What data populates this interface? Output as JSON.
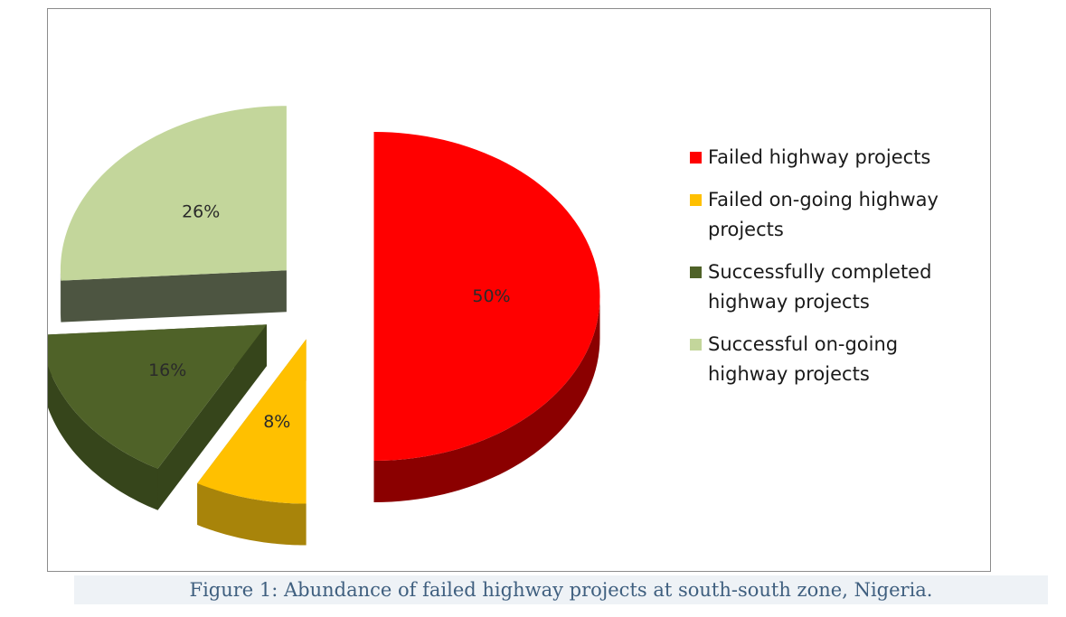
{
  "chart_data": {
    "type": "pie",
    "style": "3d-exploded",
    "title": "",
    "slices": [
      {
        "label": "Failed highway projects",
        "value": 50,
        "display": "50%",
        "color": "#ff0000",
        "side_color": "#8b0000"
      },
      {
        "label": "Failed on-going highway projects",
        "value": 8,
        "display": "8%",
        "color": "#ffc000",
        "side_color": "#a8840a"
      },
      {
        "label": "Successfully completed highway projects",
        "value": 16,
        "display": "16%",
        "color": "#4f6228",
        "side_color": "#36451b"
      },
      {
        "label": "Successful on-going highway projects",
        "value": 26,
        "display": "26%",
        "color": "#c3d69b",
        "side_color": "#4d5541"
      }
    ],
    "legend": {
      "position": "right",
      "items": [
        "Failed highway projects",
        "Failed on-going highway projects",
        "Successfully completed highway projects",
        "Successful on-going highway projects"
      ]
    }
  },
  "caption": "Figure 1: Abundance of failed highway projects at south-south zone, Nigeria."
}
